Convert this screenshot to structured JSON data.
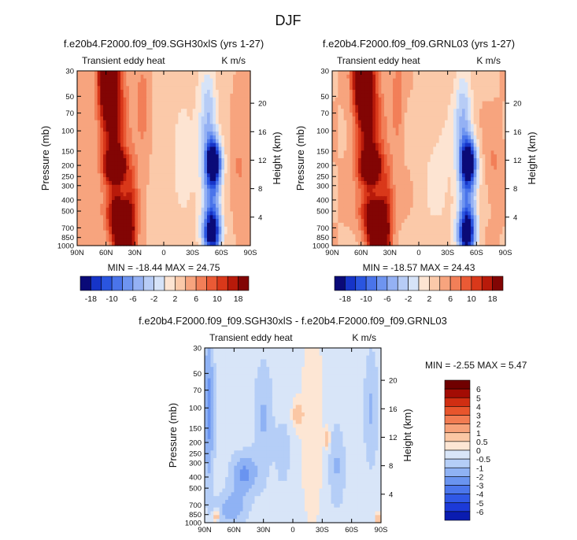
{
  "figure": {
    "title": "DJF"
  },
  "palettes": {
    "full": [
      "#0a0a78",
      "#1634c8",
      "#2a55e0",
      "#4a74ea",
      "#6e94f0",
      "#94b1f4",
      "#b7ccf6",
      "#d6e3f8",
      "#fde4d2",
      "#fbc9a9",
      "#f7a47e",
      "#f27f58",
      "#ea5a35",
      "#d9381a",
      "#b81a0a",
      "#820504"
    ],
    "diff": [
      "#00007a",
      "#0a1cb0",
      "#1c3ad8",
      "#3058e6",
      "#4b76ec",
      "#6a94f0",
      "#8fb2f4",
      "#b5cef7",
      "#d8e5f8",
      "#fde6d4",
      "#fbc7a4",
      "#f7a27a",
      "#f27c52",
      "#e8552c",
      "#d02e12",
      "#a30c04",
      "#700000"
    ]
  },
  "chart_data": [
    {
      "type": "heatmap",
      "panel": "left",
      "title": "f.e20b4.F2000.f09_f09.SGH30xlS (yrs 1-27)",
      "variable_label": "Transient eddy heat",
      "units_label": "K m/s",
      "ylabel": "Pressure (mb)",
      "ylabel_right": "Height (km)",
      "x_ticks": [
        "90N",
        "60N",
        "30N",
        "0",
        "30S",
        "60S",
        "90S"
      ],
      "y_ticks": [
        "30",
        "50",
        "70",
        "100",
        "150",
        "200",
        "250",
        "300",
        "400",
        "500",
        "700",
        "850",
        "1000"
      ],
      "y_ticks_right": [
        "20",
        "16",
        "12",
        "8",
        "4"
      ],
      "stats": "MIN = -18.44   MAX = 24.75",
      "min": -18.44,
      "max": 24.75,
      "contour_levels": [
        -18,
        -16,
        -14,
        -12,
        -10,
        -8,
        -6,
        -4,
        -2,
        0,
        2,
        4,
        6,
        8,
        10,
        12,
        14,
        16,
        18
      ],
      "colorbar_labels": [
        "-18",
        "-10",
        "-6",
        "-2",
        "2",
        "6",
        "10",
        "18"
      ]
    },
    {
      "type": "heatmap",
      "panel": "right",
      "title": "f.e20b4.F2000.f09_f09.GRNL03 (yrs 1-27)",
      "variable_label": "Transient eddy heat",
      "units_label": "K m/s",
      "ylabel": "Pressure (mb)",
      "ylabel_right": "Height (km)",
      "x_ticks": [
        "90N",
        "60N",
        "30N",
        "0",
        "30S",
        "60S",
        "90S"
      ],
      "y_ticks": [
        "30",
        "50",
        "70",
        "100",
        "150",
        "200",
        "250",
        "300",
        "400",
        "500",
        "700",
        "850",
        "1000"
      ],
      "y_ticks_right": [
        "20",
        "16",
        "12",
        "8",
        "4"
      ],
      "stats": "MIN = -18.57   MAX = 24.43",
      "min": -18.57,
      "max": 24.43,
      "contour_levels": [
        -18,
        -16,
        -14,
        -12,
        -10,
        -8,
        -6,
        -4,
        -2,
        0,
        2,
        4,
        6,
        8,
        10,
        12,
        14,
        16,
        18
      ],
      "colorbar_labels": [
        "-18",
        "-10",
        "-6",
        "-2",
        "2",
        "6",
        "10",
        "18"
      ]
    },
    {
      "type": "heatmap",
      "panel": "difference",
      "title": "f.e20b4.F2000.f09_f09.SGH30xlS - f.e20b4.F2000.f09_f09.GRNL03",
      "variable_label": "Transient eddy heat",
      "units_label": "K m/s",
      "ylabel": "Pressure (mb)",
      "ylabel_right": "Height (km)",
      "x_ticks": [
        "90N",
        "60N",
        "30N",
        "0",
        "30S",
        "60S",
        "90S"
      ],
      "y_ticks": [
        "30",
        "50",
        "70",
        "100",
        "150",
        "200",
        "250",
        "300",
        "400",
        "500",
        "700",
        "850",
        "1000"
      ],
      "y_ticks_right": [
        "20",
        "16",
        "12",
        "8",
        "4"
      ],
      "stats": "MIN =   -2.55   MAX =    5.47",
      "min": -2.55,
      "max": 5.47,
      "contour_levels": [
        -6,
        -5,
        -4,
        -3,
        -2,
        -1,
        -0.5,
        0,
        0.5,
        1,
        2,
        3,
        4,
        5,
        6
      ],
      "colorbar_labels": [
        "6",
        "5",
        "4",
        "3",
        "2",
        "1",
        "0.5",
        "0",
        "-0.5",
        "-1",
        "-2",
        "-3",
        "-4",
        "-5",
        "-6"
      ]
    }
  ]
}
